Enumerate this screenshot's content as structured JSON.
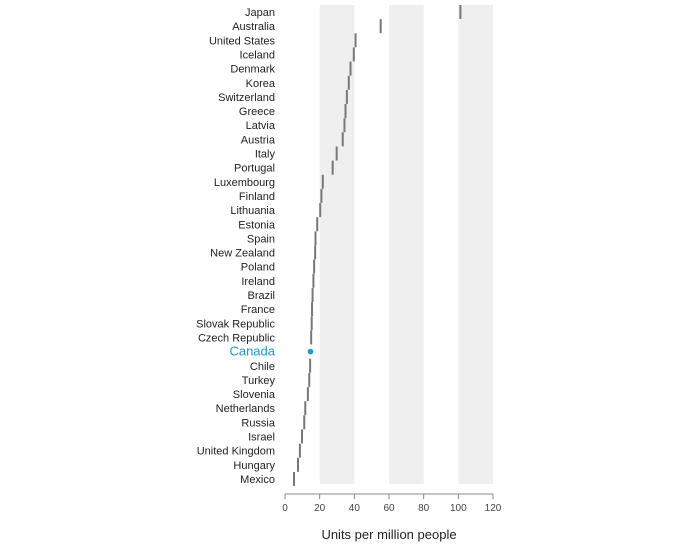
{
  "chart_data": {
    "type": "scatter",
    "title": "",
    "xlabel": "Units per million people",
    "ylabel": "",
    "xlim": [
      0,
      120
    ],
    "xticks": [
      0,
      20,
      40,
      60,
      80,
      100,
      120
    ],
    "grid": "alternating vertical bands (20-40, 60-80, 100-120)",
    "legend": "none",
    "highlight": "Canada",
    "colors": {
      "band": "#efefef",
      "mark": "#777777",
      "highlight": "#1a9bd7",
      "text": "#222222",
      "axis": "#888888"
    },
    "categories": [
      "Japan",
      "Australia",
      "United States",
      "Iceland",
      "Denmark",
      "Korea",
      "Switzerland",
      "Greece",
      "Latvia",
      "Austria",
      "Italy",
      "Portugal",
      "Luxembourg",
      "Finland",
      "Lithuania",
      "Estonia",
      "Spain",
      "New Zealand",
      "Poland",
      "Ireland",
      "Brazil",
      "France",
      "Slovak Republic",
      "Czech Republic",
      "Canada",
      "Chile",
      "Turkey",
      "Slovenia",
      "Netherlands",
      "Russia",
      "Israel",
      "United Kingdom",
      "Hungary",
      "Mexico"
    ],
    "values": [
      101.2,
      55.2,
      40.7,
      39.7,
      37.8,
      36.8,
      35.7,
      34.9,
      34.3,
      33.3,
      29.8,
      27.5,
      21.8,
      21.0,
      20.3,
      18.6,
      17.6,
      17.4,
      16.8,
      16.4,
      15.9,
      15.6,
      15.4,
      15.1,
      14.7,
      14.5,
      14.0,
      13.2,
      11.7,
      11.1,
      9.8,
      8.6,
      7.5,
      5.2
    ]
  }
}
